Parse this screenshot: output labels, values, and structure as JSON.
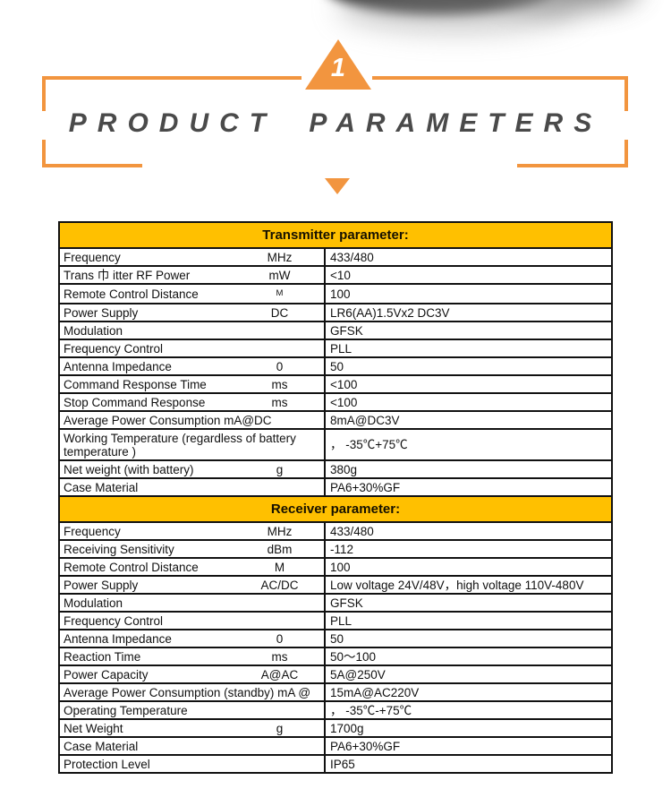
{
  "colors": {
    "accent_orange": "#F2953F",
    "header_yellow": "#FFC000",
    "title_gray": "#4a4a4a",
    "table_border": "#111111"
  },
  "section": {
    "number": "1",
    "title": "PRODUCT PARAMETERS"
  },
  "transmitter": {
    "header": "Transmitter parameter:",
    "rows": [
      {
        "name": "Frequency",
        "unit": "MHz",
        "value": "433/480"
      },
      {
        "name": "Trans 巾 itter RF Power",
        "unit": "mW",
        "value": "<10"
      },
      {
        "name": "Remote Control Distance",
        "unit": "M",
        "unit_small": true,
        "value": "100"
      },
      {
        "name": "Power Supply",
        "unit": "DC",
        "value": "LR6(AA)1.5Vx2 DC3V"
      },
      {
        "name": "Modulation",
        "unit": "",
        "value": "GFSK"
      },
      {
        "name": "Frequency Control",
        "unit": "",
        "value": "PLL"
      },
      {
        "name": "Antenna Impedance",
        "unit": "0",
        "value": "50"
      },
      {
        "name": "Command Response Time",
        "unit": "ms",
        "value": "<100"
      },
      {
        "name": "Stop Command Response",
        "unit": "ms",
        "value": "<100"
      },
      {
        "name": "Average Power Consumption mA@DC",
        "unit": "",
        "value": "8mA@DC3V"
      },
      {
        "name": "Working Temperature (regardless of battery temperature )",
        "unit": "",
        "value": "， -35℃+75℃"
      },
      {
        "name": "Net weight (with battery)",
        "unit": "g",
        "value": "380g"
      },
      {
        "name": "Case Material",
        "unit": "",
        "value": "PA6+30%GF"
      }
    ]
  },
  "receiver": {
    "header": "Receiver parameter:",
    "rows": [
      {
        "name": "Frequency",
        "unit": "MHz",
        "value": "433/480"
      },
      {
        "name": "Receiving Sensitivity",
        "unit": "dBm",
        "value": "-112"
      },
      {
        "name": "Remote Control Distance",
        "unit": "M",
        "value": "100"
      },
      {
        "name": "Power Supply",
        "unit": "AC/DC",
        "value": "Low voltage 24V/48V，high voltage 110V-480V"
      },
      {
        "name": "Modulation",
        "unit": "",
        "value": "GFSK"
      },
      {
        "name": "Frequency Control",
        "unit": "",
        "value": "PLL"
      },
      {
        "name": "Antenna Impedance",
        "unit": "0",
        "value": "50"
      },
      {
        "name": "Reaction Time",
        "unit": "ms",
        "value": "50～100"
      },
      {
        "name": "Power Capacity",
        "unit": "A@AC",
        "value": "5A@250V"
      },
      {
        "name": "Average Power Consumption (standby) mA @",
        "unit": "",
        "value": "15mA@AC220V"
      },
      {
        "name": "Operating Temperature",
        "unit": "",
        "value": "， -35℃-+75℃"
      },
      {
        "name": "Net Weight",
        "unit": "g",
        "value": "1700g"
      },
      {
        "name": "Case Material",
        "unit": "",
        "value": "PA6+30%GF"
      },
      {
        "name": "Protection Level",
        "unit": "",
        "value": "IP65"
      }
    ]
  }
}
